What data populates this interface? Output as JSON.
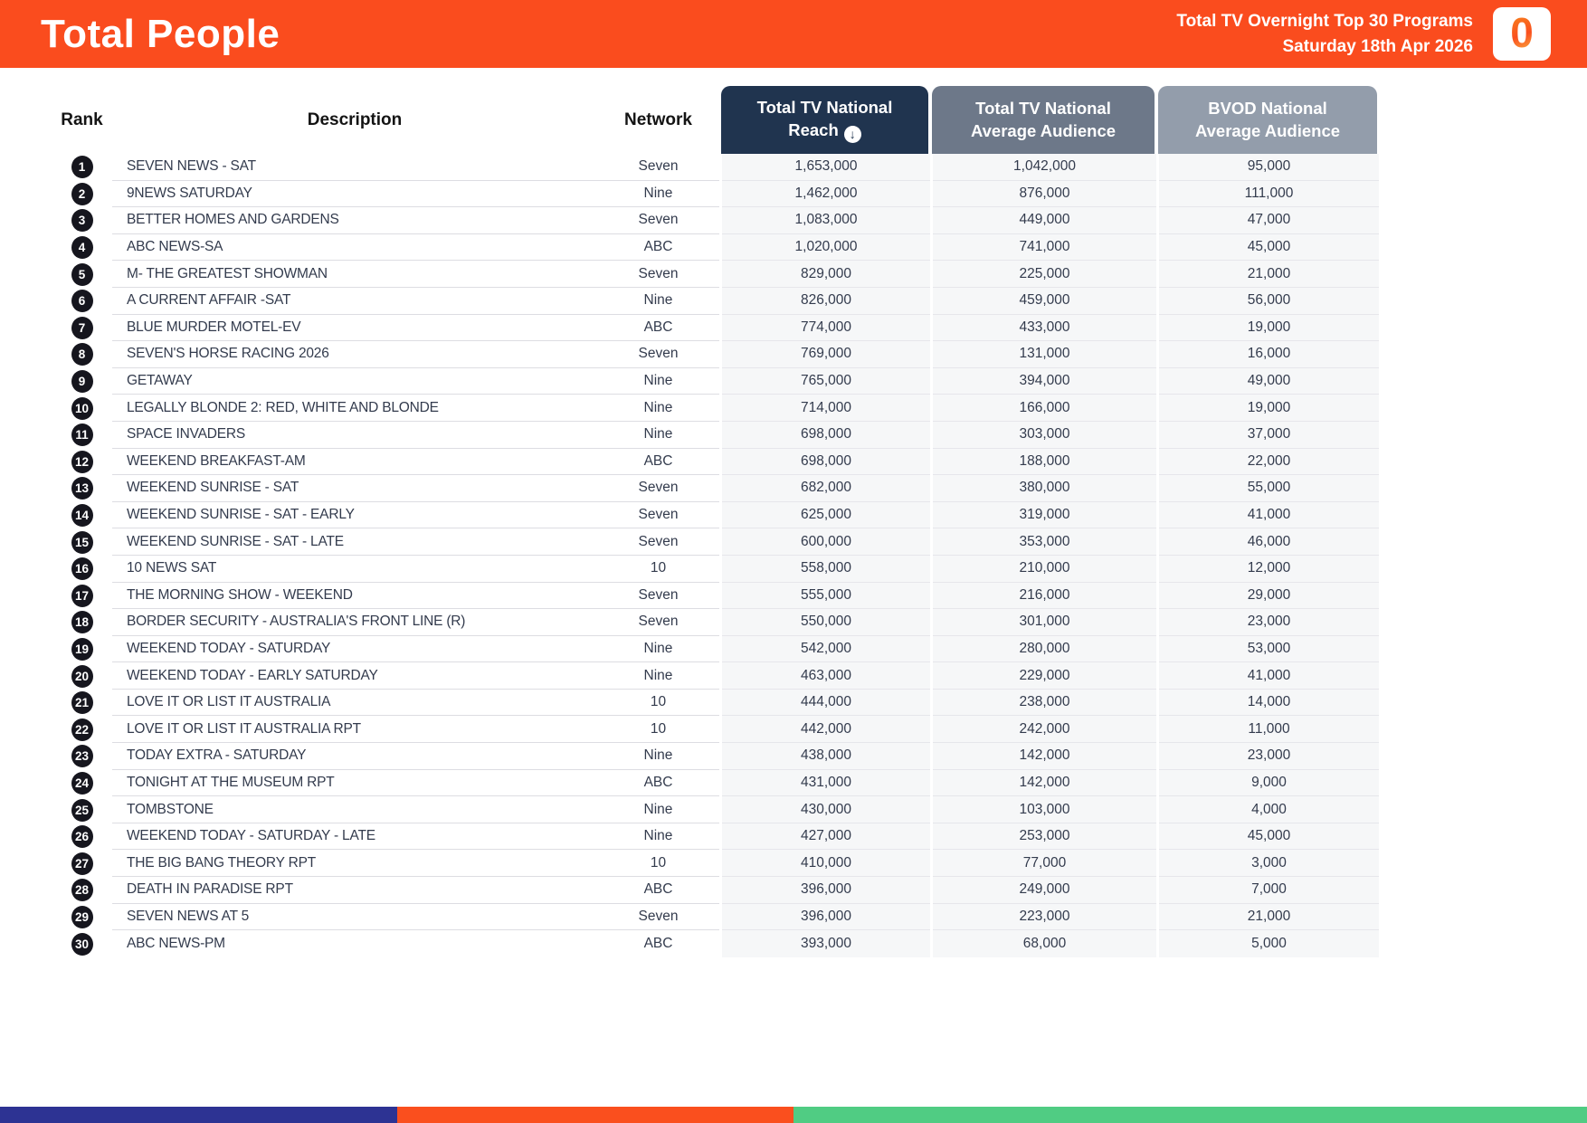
{
  "header": {
    "title": "Total People",
    "report_name": "Total TV Overnight Top 30 Programs",
    "report_date": "Saturday 18th Apr 2026",
    "logo_glyph": "0",
    "banner_color": "#FA4C1E"
  },
  "table": {
    "headers": {
      "rank": "Rank",
      "description": "Description",
      "network": "Network",
      "reach_line1": "Total TV National",
      "reach_line2": "Reach",
      "avg_line1": "Total TV National",
      "avg_line2": "Average Audience",
      "bvod_line1": "BVOD National",
      "bvod_line2": "Average Audience",
      "sort_icon_glyph": "↓"
    },
    "header_colors": {
      "reach": "#20344F",
      "avg": "#6D7889",
      "bvod": "#939DAB"
    },
    "rows": [
      {
        "rank": "1",
        "description": "SEVEN NEWS - SAT",
        "network": "Seven",
        "reach": "1,653,000",
        "avg_audience": "1,042,000",
        "bvod_audience": "95,000"
      },
      {
        "rank": "2",
        "description": "9NEWS SATURDAY",
        "network": "Nine",
        "reach": "1,462,000",
        "avg_audience": "876,000",
        "bvod_audience": "111,000"
      },
      {
        "rank": "3",
        "description": "BETTER HOMES AND GARDENS",
        "network": "Seven",
        "reach": "1,083,000",
        "avg_audience": "449,000",
        "bvod_audience": "47,000"
      },
      {
        "rank": "4",
        "description": "ABC NEWS-SA",
        "network": "ABC",
        "reach": "1,020,000",
        "avg_audience": "741,000",
        "bvod_audience": "45,000"
      },
      {
        "rank": "5",
        "description": "M- THE GREATEST SHOWMAN",
        "network": "Seven",
        "reach": "829,000",
        "avg_audience": "225,000",
        "bvod_audience": "21,000"
      },
      {
        "rank": "6",
        "description": "A CURRENT AFFAIR -SAT",
        "network": "Nine",
        "reach": "826,000",
        "avg_audience": "459,000",
        "bvod_audience": "56,000"
      },
      {
        "rank": "7",
        "description": "BLUE MURDER MOTEL-EV",
        "network": "ABC",
        "reach": "774,000",
        "avg_audience": "433,000",
        "bvod_audience": "19,000"
      },
      {
        "rank": "8",
        "description": "SEVEN'S HORSE RACING 2026",
        "network": "Seven",
        "reach": "769,000",
        "avg_audience": "131,000",
        "bvod_audience": "16,000"
      },
      {
        "rank": "9",
        "description": "GETAWAY",
        "network": "Nine",
        "reach": "765,000",
        "avg_audience": "394,000",
        "bvod_audience": "49,000"
      },
      {
        "rank": "10",
        "description": "LEGALLY BLONDE 2: RED, WHITE AND BLONDE",
        "network": "Nine",
        "reach": "714,000",
        "avg_audience": "166,000",
        "bvod_audience": "19,000"
      },
      {
        "rank": "11",
        "description": "SPACE INVADERS",
        "network": "Nine",
        "reach": "698,000",
        "avg_audience": "303,000",
        "bvod_audience": "37,000"
      },
      {
        "rank": "12",
        "description": "WEEKEND BREAKFAST-AM",
        "network": "ABC",
        "reach": "698,000",
        "avg_audience": "188,000",
        "bvod_audience": "22,000"
      },
      {
        "rank": "13",
        "description": "WEEKEND SUNRISE - SAT",
        "network": "Seven",
        "reach": "682,000",
        "avg_audience": "380,000",
        "bvod_audience": "55,000"
      },
      {
        "rank": "14",
        "description": "WEEKEND SUNRISE - SAT - EARLY",
        "network": "Seven",
        "reach": "625,000",
        "avg_audience": "319,000",
        "bvod_audience": "41,000"
      },
      {
        "rank": "15",
        "description": "WEEKEND SUNRISE - SAT - LATE",
        "network": "Seven",
        "reach": "600,000",
        "avg_audience": "353,000",
        "bvod_audience": "46,000"
      },
      {
        "rank": "16",
        "description": "10 NEWS SAT",
        "network": "10",
        "reach": "558,000",
        "avg_audience": "210,000",
        "bvod_audience": "12,000"
      },
      {
        "rank": "17",
        "description": "THE MORNING SHOW - WEEKEND",
        "network": "Seven",
        "reach": "555,000",
        "avg_audience": "216,000",
        "bvod_audience": "29,000"
      },
      {
        "rank": "18",
        "description": "BORDER SECURITY - AUSTRALIA'S FRONT LINE (R)",
        "network": "Seven",
        "reach": "550,000",
        "avg_audience": "301,000",
        "bvod_audience": "23,000"
      },
      {
        "rank": "19",
        "description": "WEEKEND TODAY - SATURDAY",
        "network": "Nine",
        "reach": "542,000",
        "avg_audience": "280,000",
        "bvod_audience": "53,000"
      },
      {
        "rank": "20",
        "description": "WEEKEND TODAY - EARLY SATURDAY",
        "network": "Nine",
        "reach": "463,000",
        "avg_audience": "229,000",
        "bvod_audience": "41,000"
      },
      {
        "rank": "21",
        "description": "LOVE IT OR LIST IT AUSTRALIA",
        "network": "10",
        "reach": "444,000",
        "avg_audience": "238,000",
        "bvod_audience": "14,000"
      },
      {
        "rank": "22",
        "description": "LOVE IT OR LIST IT AUSTRALIA RPT",
        "network": "10",
        "reach": "442,000",
        "avg_audience": "242,000",
        "bvod_audience": "11,000"
      },
      {
        "rank": "23",
        "description": "TODAY EXTRA - SATURDAY",
        "network": "Nine",
        "reach": "438,000",
        "avg_audience": "142,000",
        "bvod_audience": "23,000"
      },
      {
        "rank": "24",
        "description": "TONIGHT AT THE MUSEUM RPT",
        "network": "ABC",
        "reach": "431,000",
        "avg_audience": "142,000",
        "bvod_audience": "9,000"
      },
      {
        "rank": "25",
        "description": "TOMBSTONE",
        "network": "Nine",
        "reach": "430,000",
        "avg_audience": "103,000",
        "bvod_audience": "4,000"
      },
      {
        "rank": "26",
        "description": "WEEKEND TODAY - SATURDAY - LATE",
        "network": "Nine",
        "reach": "427,000",
        "avg_audience": "253,000",
        "bvod_audience": "45,000"
      },
      {
        "rank": "27",
        "description": "THE BIG BANG THEORY RPT",
        "network": "10",
        "reach": "410,000",
        "avg_audience": "77,000",
        "bvod_audience": "3,000"
      },
      {
        "rank": "28",
        "description": "DEATH IN PARADISE RPT",
        "network": "ABC",
        "reach": "396,000",
        "avg_audience": "249,000",
        "bvod_audience": "7,000"
      },
      {
        "rank": "29",
        "description": "SEVEN NEWS AT 5",
        "network": "Seven",
        "reach": "396,000",
        "avg_audience": "223,000",
        "bvod_audience": "21,000"
      },
      {
        "rank": "30",
        "description": "ABC NEWS-PM",
        "network": "ABC",
        "reach": "393,000",
        "avg_audience": "68,000",
        "bvod_audience": "5,000"
      }
    ]
  },
  "footer": {
    "segments": [
      {
        "name": "blue",
        "color": "#2D3393",
        "width_pct": 25
      },
      {
        "name": "orange",
        "color": "#FA4F1E",
        "width_pct": 25
      },
      {
        "name": "green",
        "color": "#50CC83",
        "width_pct": 50
      }
    ]
  }
}
